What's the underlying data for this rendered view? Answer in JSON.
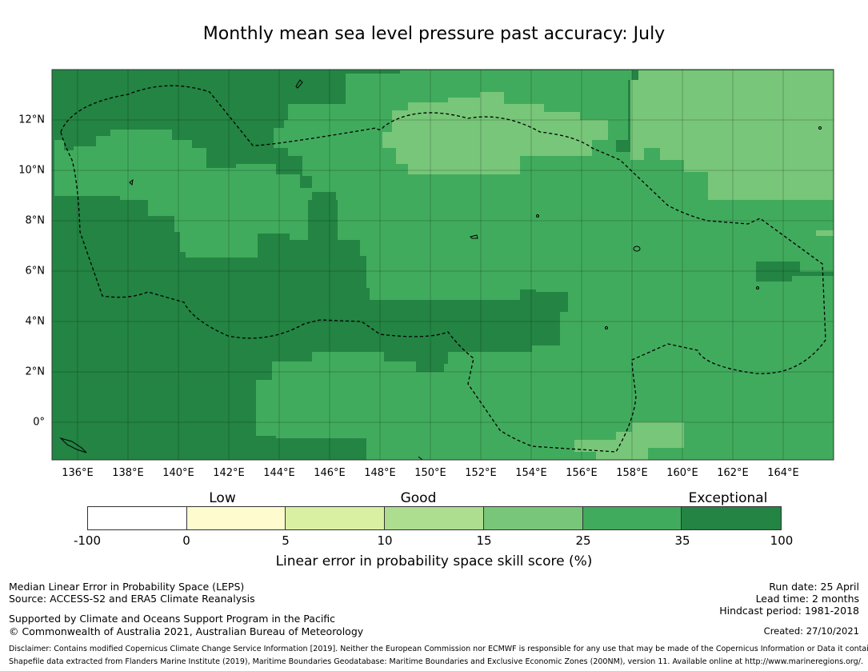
{
  "title": "Monthly mean sea level pressure past accuracy: July",
  "x_ticks": [
    "136°E",
    "138°E",
    "140°E",
    "142°E",
    "144°E",
    "146°E",
    "148°E",
    "150°E",
    "152°E",
    "154°E",
    "156°E",
    "158°E",
    "160°E",
    "162°E",
    "164°E"
  ],
  "y_ticks": [
    "12°N",
    "10°N",
    "8°N",
    "6°N",
    "4°N",
    "2°N",
    "0°"
  ],
  "colorbar": {
    "categories": [
      "Low",
      "Good",
      "Exceptional"
    ],
    "tick_labels": [
      "-100",
      "0",
      "5",
      "10",
      "15",
      "25",
      "35",
      "100"
    ],
    "colors": [
      "#ffffff",
      "#fefccf",
      "#d9f0a3",
      "#addd8e",
      "#78c679",
      "#41ab5d",
      "#238443"
    ],
    "label": "Linear error in probability space skill score (%)"
  },
  "colors": {
    "exceptional": "#238443",
    "high": "#41ab5d",
    "good": "#78c679",
    "boundary": "#000000"
  },
  "footer": {
    "method": "Median Linear Error in Probability Space (LEPS)",
    "source": "Source: ACCESS-S2 and ERA5 Climate Reanalysis",
    "support": "Supported by Climate and Oceans Support Program in the Pacific",
    "copyright": "© Commonwealth of Australia 2021, Australian Bureau of Meteorology",
    "run_date": "Run date: 25 April",
    "lead_time": "Lead time: 2 months",
    "hindcast": "Hindcast period: 1981-2018",
    "created": "Created: 27/10/2021",
    "disclaimer": "Disclaimer: Contains modified Copernicus Climate Change Service Information [2019]. Neither the European Commission nor ECMWF is responsible for any use that may be made of the Copernicus Information or Data it contains.",
    "shapefile": "Shapefile data extracted from Flanders Marine Institute (2019), Maritime Boundaries Geodatabase: Maritime Boundaries and Exclusive Economic Zones (200NM), version 11. Available online at http://www.marineregions.org/."
  }
}
